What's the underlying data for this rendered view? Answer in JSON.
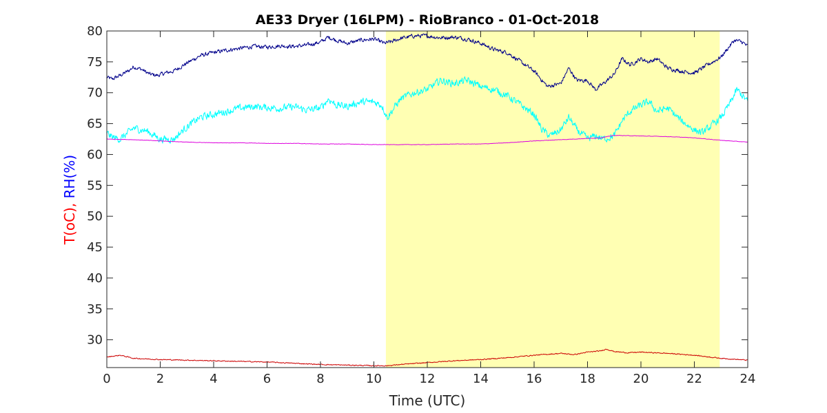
{
  "chart_data": {
    "type": "line",
    "title": "AE33 Dryer (16LPM)  - RioBranco - 01-Oct-2018",
    "xlabel": "Time (UTC)",
    "ylabel_parts": [
      {
        "text": "T(oC),",
        "color": "#ff0000"
      },
      {
        "text": " RH(%)",
        "color": "#0000ff"
      }
    ],
    "xlim": [
      0,
      24
    ],
    "ylim": [
      25.5,
      80
    ],
    "xticks": [
      0,
      2,
      4,
      6,
      8,
      10,
      12,
      14,
      16,
      18,
      20,
      22,
      24
    ],
    "yticks": [
      30,
      35,
      40,
      45,
      50,
      55,
      60,
      65,
      70,
      75,
      80
    ],
    "grid": false,
    "shaded_region": {
      "x_start": 10.45,
      "x_end": 22.95,
      "color": "#ffffb3"
    },
    "series": [
      {
        "color": "#00008b",
        "noise": 0.5,
        "x": [
          0,
          0.2,
          0.5,
          0.8,
          1.0,
          1.3,
          1.6,
          1.9,
          2.2,
          2.5,
          3.0,
          3.5,
          4.0,
          4.5,
          5.0,
          5.5,
          6.0,
          6.5,
          7.0,
          7.5,
          8.0,
          8.3,
          8.6,
          9.0,
          9.5,
          10.0,
          10.4,
          10.7,
          11.0,
          11.5,
          12.0,
          12.5,
          13.0,
          13.5,
          14.0,
          14.5,
          15.0,
          15.5,
          16.0,
          16.5,
          17.0,
          17.3,
          17.6,
          18.0,
          18.3,
          18.6,
          19.0,
          19.3,
          19.6,
          20.0,
          20.3,
          20.6,
          21.0,
          21.5,
          22.0,
          22.5,
          23.0,
          23.5,
          23.8,
          24.0
        ],
        "y": [
          72.5,
          72.2,
          72.8,
          73.5,
          74.2,
          73.8,
          73.0,
          72.8,
          73.2,
          73.5,
          74.8,
          76.0,
          76.5,
          76.9,
          77.2,
          77.5,
          77.4,
          77.6,
          77.5,
          77.7,
          78.2,
          79.0,
          78.5,
          78.0,
          78.5,
          78.7,
          78.0,
          78.3,
          78.8,
          79.2,
          79.2,
          78.9,
          79.0,
          78.7,
          78.0,
          77.0,
          76.5,
          75.0,
          73.5,
          71.0,
          71.5,
          74.0,
          72.0,
          72.0,
          70.5,
          71.5,
          73.0,
          75.5,
          74.5,
          75.5,
          75.0,
          75.5,
          74.0,
          73.5,
          73.2,
          74.5,
          75.8,
          78.5,
          78.2,
          77.5
        ]
      },
      {
        "color": "#00ffff",
        "noise": 0.9,
        "x": [
          0,
          0.2,
          0.5,
          0.8,
          1.0,
          1.5,
          2.0,
          2.5,
          3.0,
          3.5,
          4.0,
          4.5,
          5.0,
          5.5,
          6.0,
          6.5,
          7.0,
          7.5,
          8.0,
          8.3,
          8.6,
          9.0,
          9.5,
          10.0,
          10.3,
          10.5,
          11.0,
          11.5,
          12.0,
          12.5,
          13.0,
          13.5,
          14.0,
          14.5,
          15.0,
          15.5,
          16.0,
          16.3,
          16.6,
          17.0,
          17.3,
          17.6,
          18.0,
          18.3,
          18.6,
          19.0,
          19.3,
          19.6,
          20.0,
          20.3,
          20.6,
          21.0,
          21.5,
          22.0,
          22.3,
          22.6,
          23.0,
          23.3,
          23.6,
          24.0
        ],
        "y": [
          63.5,
          62.8,
          62.5,
          63.5,
          64.3,
          63.8,
          62.5,
          62.5,
          64.5,
          66.0,
          66.5,
          67.0,
          67.5,
          67.8,
          67.6,
          67.5,
          67.7,
          67.2,
          67.5,
          69.0,
          68.0,
          67.8,
          68.5,
          68.5,
          68.0,
          66.0,
          69.0,
          70.0,
          70.5,
          72.0,
          71.5,
          72.0,
          71.0,
          70.5,
          69.5,
          68.0,
          66.5,
          64.0,
          63.0,
          64.0,
          66.0,
          64.0,
          62.5,
          63.0,
          62.5,
          63.0,
          65.5,
          67.0,
          68.0,
          68.5,
          67.0,
          67.5,
          65.5,
          64.0,
          63.5,
          64.5,
          66.0,
          68.0,
          70.5,
          68.5
        ]
      },
      {
        "color": "#dd00dd",
        "noise": 0.05,
        "x": [
          0,
          1,
          2,
          3,
          4,
          5,
          6,
          7,
          8,
          9,
          10,
          11,
          12,
          13,
          14,
          15,
          16,
          17,
          18,
          18.5,
          19,
          20,
          21,
          22,
          23,
          24
        ],
        "y": [
          62.5,
          62.4,
          62.2,
          62.0,
          61.9,
          61.9,
          61.8,
          61.8,
          61.7,
          61.7,
          61.6,
          61.6,
          61.6,
          61.7,
          61.7,
          61.9,
          62.2,
          62.4,
          62.6,
          62.7,
          63.1,
          63.0,
          62.9,
          62.7,
          62.3,
          62.0
        ]
      },
      {
        "color": "#cc0000",
        "noise": 0.12,
        "x": [
          0,
          0.5,
          1.0,
          2,
          3,
          4,
          5,
          6,
          7,
          8,
          9,
          10,
          10.5,
          11,
          12,
          13,
          14,
          15,
          16,
          17,
          17.5,
          18,
          18.5,
          18.7,
          19,
          19.5,
          20,
          21,
          22,
          23,
          24
        ],
        "y": [
          27.2,
          27.5,
          27.0,
          26.8,
          26.7,
          26.6,
          26.5,
          26.4,
          26.2,
          26.0,
          25.9,
          25.8,
          25.8,
          26.0,
          26.3,
          26.6,
          26.8,
          27.1,
          27.5,
          27.8,
          27.6,
          28.0,
          28.2,
          28.5,
          28.1,
          27.9,
          28.0,
          27.8,
          27.5,
          27.0,
          26.7
        ]
      }
    ]
  }
}
